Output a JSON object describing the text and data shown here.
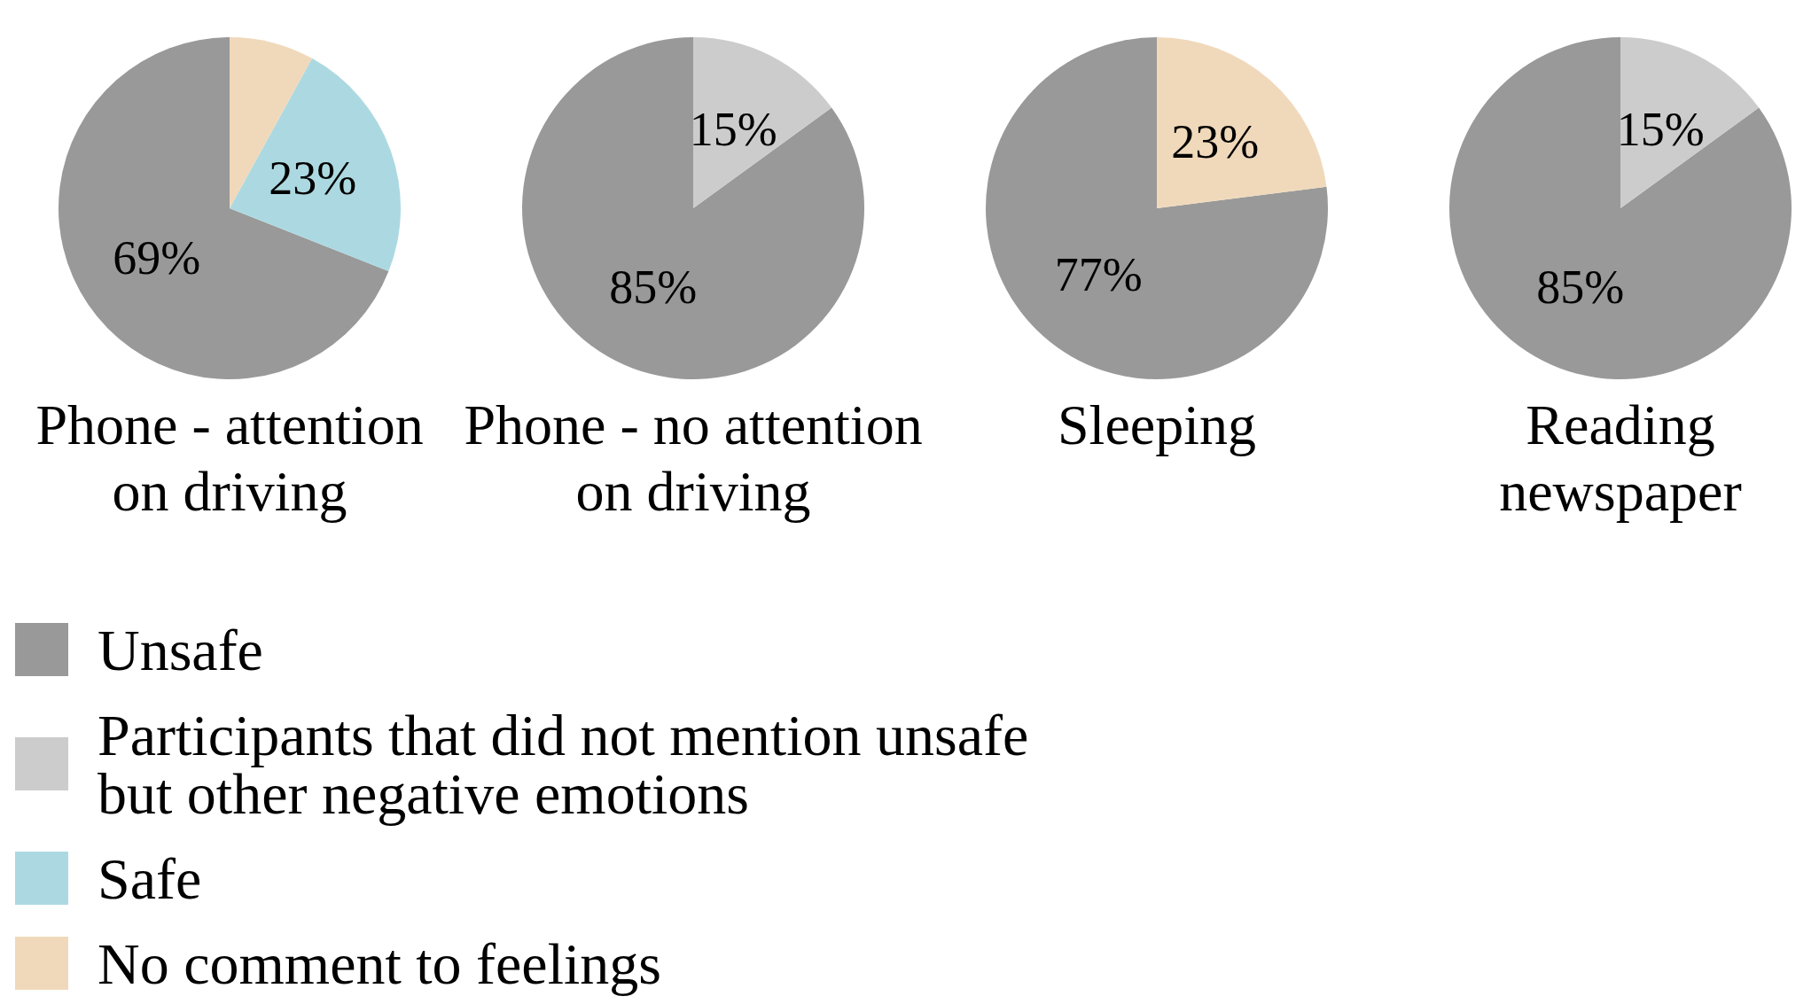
{
  "chart_data": {
    "type": "pie",
    "categories": [
      "Unsafe",
      "Participants that did not mention unsafe but other negative emotions",
      "Safe",
      "No comment to feelings"
    ],
    "colors": [
      "#999999",
      "#cccccc",
      "#acd9e1",
      "#f0d9bb"
    ],
    "series": [
      {
        "name": "Phone - attention on driving",
        "values": [
          69,
          null,
          23,
          8
        ],
        "value_labels": [
          "69%",
          null,
          "23%",
          null
        ]
      },
      {
        "name": "Phone - no attention on driving",
        "values": [
          85,
          15,
          null,
          null
        ],
        "value_labels": [
          "85%",
          "15%",
          null,
          null
        ]
      },
      {
        "name": "Sleeping",
        "values": [
          77,
          null,
          null,
          23
        ],
        "value_labels": [
          "77%",
          null,
          null,
          "23%"
        ]
      },
      {
        "name": "Reading newspaper",
        "values": [
          85,
          15,
          null,
          null
        ],
        "value_labels": [
          "85%",
          "15%",
          null,
          null
        ]
      }
    ],
    "legend": "bottom left"
  }
}
